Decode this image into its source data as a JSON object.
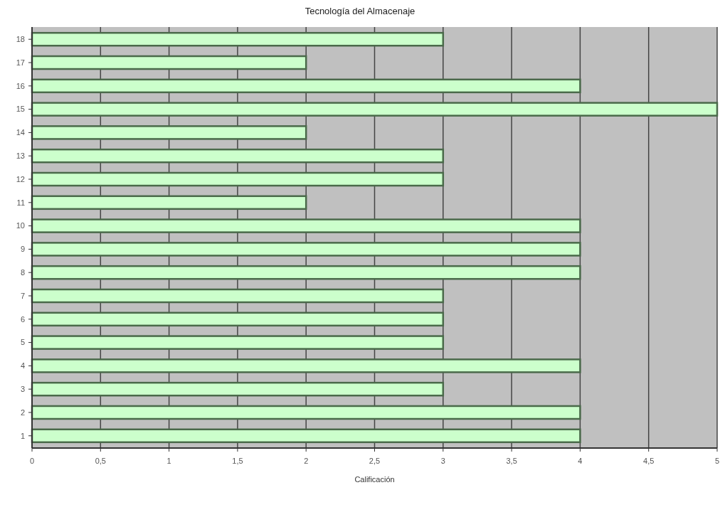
{
  "chart_data": {
    "type": "bar",
    "orientation": "horizontal",
    "title": "Tecnología del Almacenaje",
    "xlabel": "Calificación",
    "categories": [
      "18",
      "17",
      "16",
      "15",
      "14",
      "13",
      "12",
      "11",
      "10",
      "9",
      "8",
      "7",
      "6",
      "5",
      "4",
      "3",
      "2",
      "1"
    ],
    "values": [
      3,
      2,
      4,
      5,
      2,
      3,
      3,
      2,
      4,
      4,
      4,
      3,
      3,
      3,
      4,
      3,
      4,
      4
    ],
    "color": "#ccffcc",
    "xlim": [
      0,
      5
    ],
    "xticks": [
      0,
      {
        "value": 0.5,
        "label": "0,5"
      },
      1,
      {
        "value": 1.5,
        "label": "1,5"
      },
      2,
      {
        "value": 2.5,
        "label": "2,5"
      },
      3,
      {
        "value": 3.5,
        "label": "3,5"
      },
      4,
      {
        "value": 4.5,
        "label": "4,5"
      },
      5
    ],
    "grid": "x"
  }
}
